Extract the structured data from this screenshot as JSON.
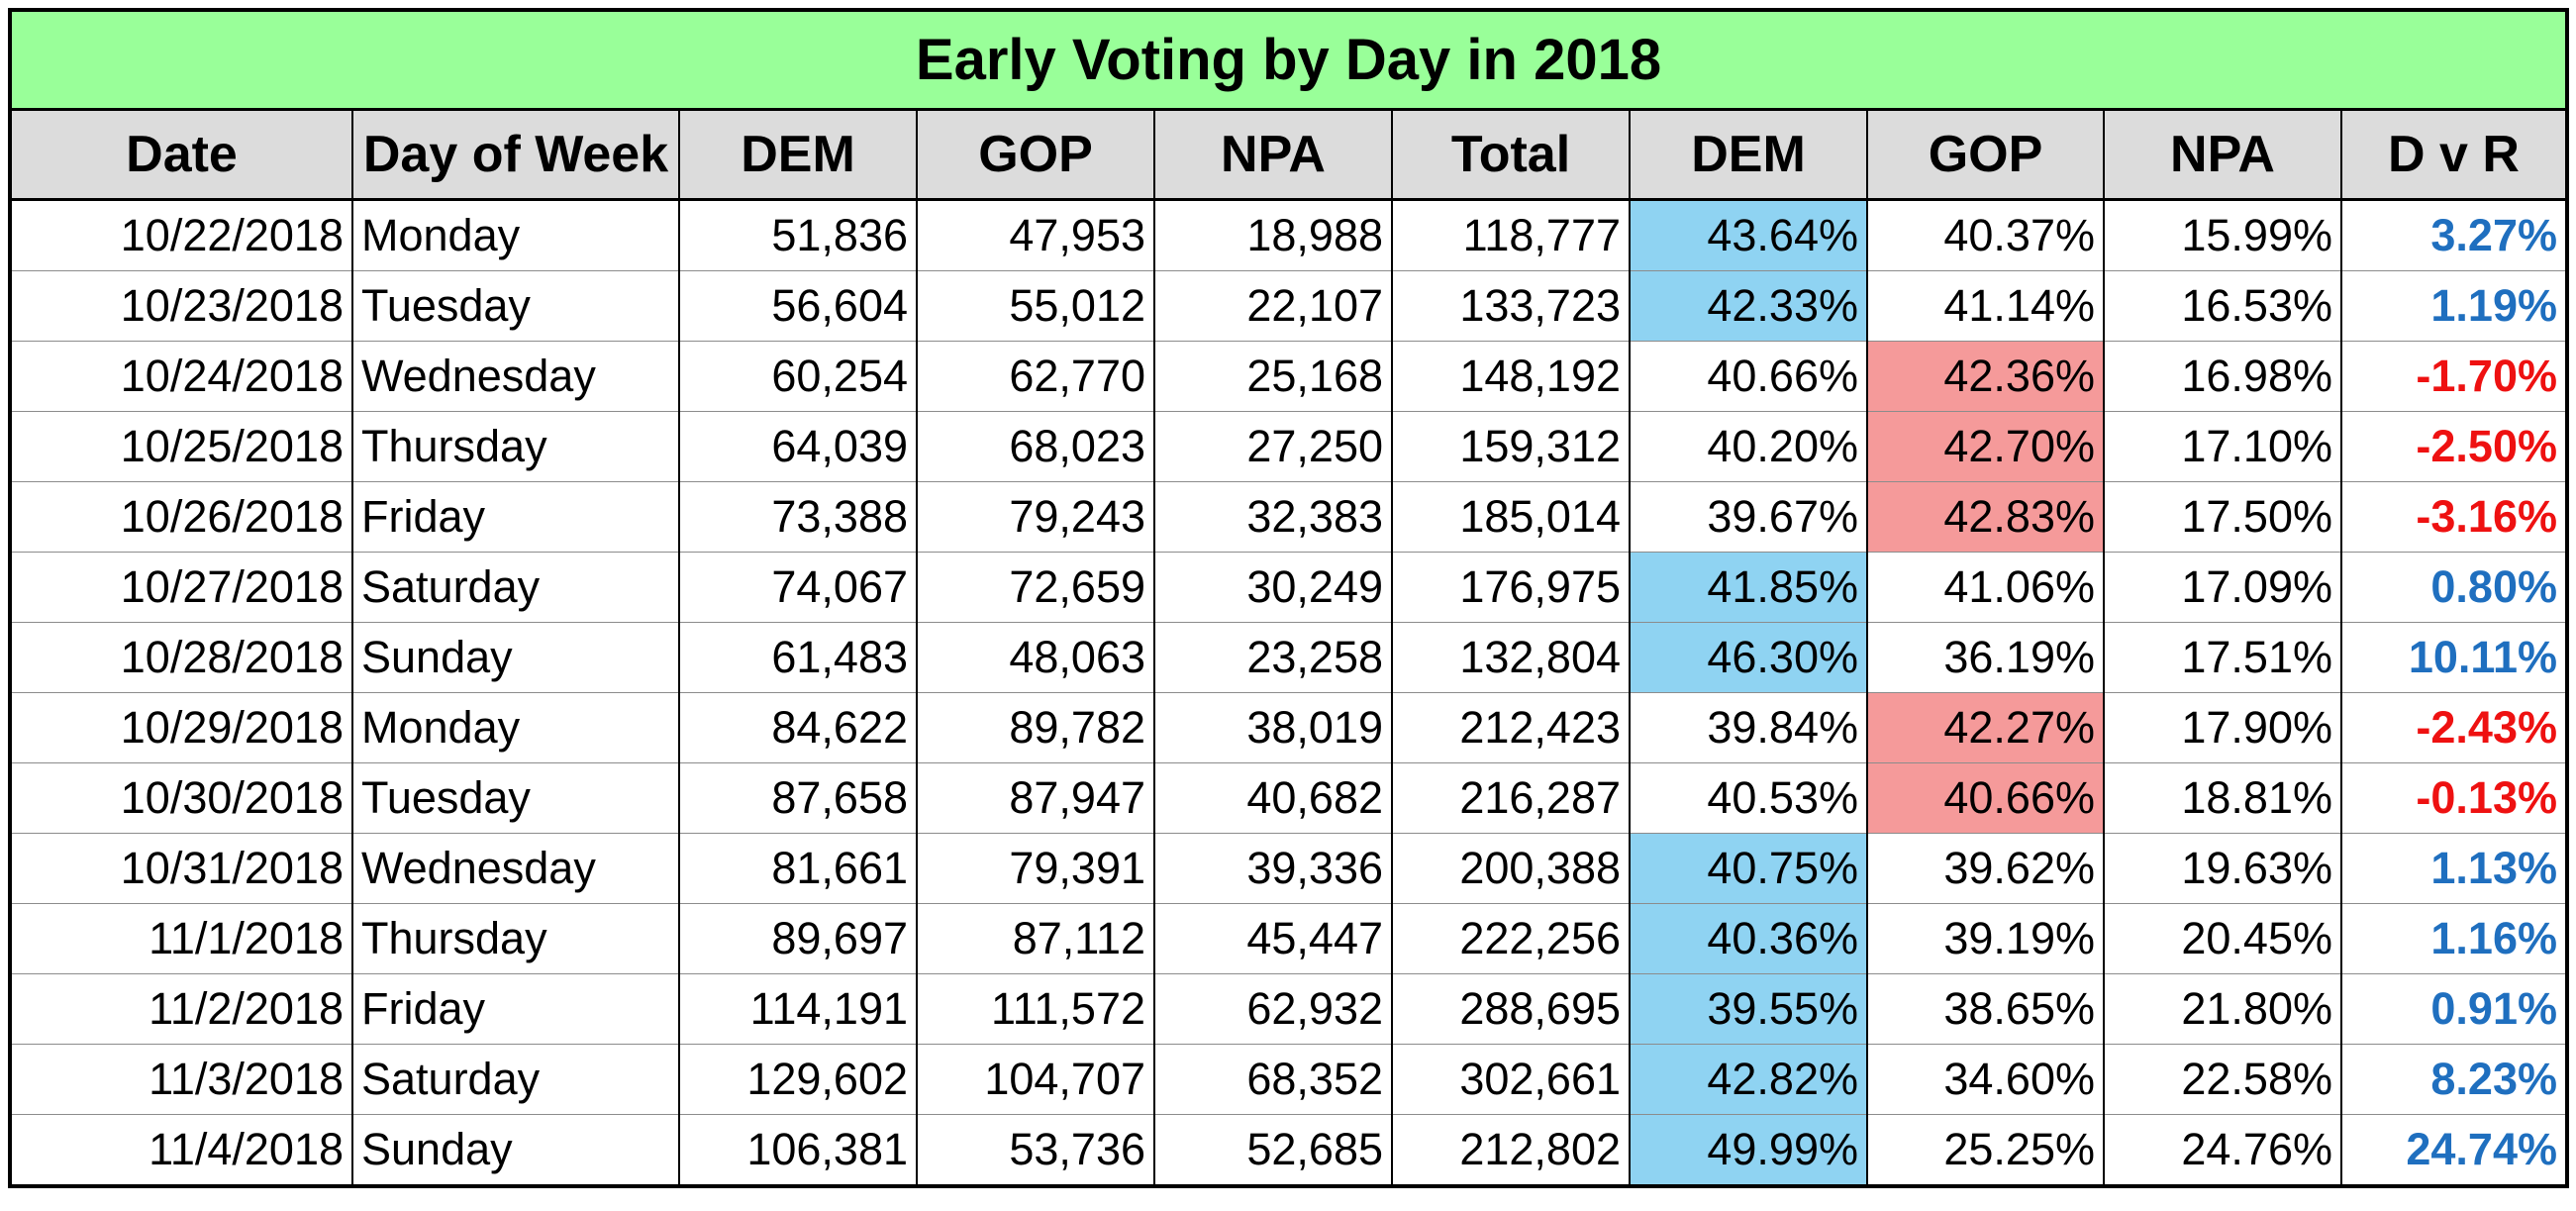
{
  "title": "Early Voting by Day in 2018",
  "colors": {
    "title_bg": "#99ff99",
    "header_bg": "#dcdcdc",
    "dem_lead_fill": "#8fd3f2",
    "gop_lead_fill": "#f59a9a",
    "positive_text": "#1f6fbf",
    "negative_text": "#ee1111"
  },
  "headers": [
    "Date",
    "Day of Week",
    "DEM",
    "GOP",
    "NPA",
    "Total",
    "DEM",
    "GOP",
    "NPA",
    "D v R"
  ],
  "rows": [
    {
      "date": "10/22/2018",
      "day": "Monday",
      "dem": "51,836",
      "gop": "47,953",
      "npa": "18,988",
      "total": "118,777",
      "dem_pct": "43.64%",
      "gop_pct": "40.37%",
      "npa_pct": "15.99%",
      "dvr": "3.27%",
      "leader": "dem"
    },
    {
      "date": "10/23/2018",
      "day": "Tuesday",
      "dem": "56,604",
      "gop": "55,012",
      "npa": "22,107",
      "total": "133,723",
      "dem_pct": "42.33%",
      "gop_pct": "41.14%",
      "npa_pct": "16.53%",
      "dvr": "1.19%",
      "leader": "dem"
    },
    {
      "date": "10/24/2018",
      "day": "Wednesday",
      "dem": "60,254",
      "gop": "62,770",
      "npa": "25,168",
      "total": "148,192",
      "dem_pct": "40.66%",
      "gop_pct": "42.36%",
      "npa_pct": "16.98%",
      "dvr": "-1.70%",
      "leader": "gop"
    },
    {
      "date": "10/25/2018",
      "day": "Thursday",
      "dem": "64,039",
      "gop": "68,023",
      "npa": "27,250",
      "total": "159,312",
      "dem_pct": "40.20%",
      "gop_pct": "42.70%",
      "npa_pct": "17.10%",
      "dvr": "-2.50%",
      "leader": "gop"
    },
    {
      "date": "10/26/2018",
      "day": "Friday",
      "dem": "73,388",
      "gop": "79,243",
      "npa": "32,383",
      "total": "185,014",
      "dem_pct": "39.67%",
      "gop_pct": "42.83%",
      "npa_pct": "17.50%",
      "dvr": "-3.16%",
      "leader": "gop"
    },
    {
      "date": "10/27/2018",
      "day": "Saturday",
      "dem": "74,067",
      "gop": "72,659",
      "npa": "30,249",
      "total": "176,975",
      "dem_pct": "41.85%",
      "gop_pct": "41.06%",
      "npa_pct": "17.09%",
      "dvr": "0.80%",
      "leader": "dem"
    },
    {
      "date": "10/28/2018",
      "day": "Sunday",
      "dem": "61,483",
      "gop": "48,063",
      "npa": "23,258",
      "total": "132,804",
      "dem_pct": "46.30%",
      "gop_pct": "36.19%",
      "npa_pct": "17.51%",
      "dvr": "10.11%",
      "leader": "dem"
    },
    {
      "date": "10/29/2018",
      "day": "Monday",
      "dem": "84,622",
      "gop": "89,782",
      "npa": "38,019",
      "total": "212,423",
      "dem_pct": "39.84%",
      "gop_pct": "42.27%",
      "npa_pct": "17.90%",
      "dvr": "-2.43%",
      "leader": "gop"
    },
    {
      "date": "10/30/2018",
      "day": "Tuesday",
      "dem": "87,658",
      "gop": "87,947",
      "npa": "40,682",
      "total": "216,287",
      "dem_pct": "40.53%",
      "gop_pct": "40.66%",
      "npa_pct": "18.81%",
      "dvr": "-0.13%",
      "leader": "gop"
    },
    {
      "date": "10/31/2018",
      "day": "Wednesday",
      "dem": "81,661",
      "gop": "79,391",
      "npa": "39,336",
      "total": "200,388",
      "dem_pct": "40.75%",
      "gop_pct": "39.62%",
      "npa_pct": "19.63%",
      "dvr": "1.13%",
      "leader": "dem"
    },
    {
      "date": "11/1/2018",
      "day": "Thursday",
      "dem": "89,697",
      "gop": "87,112",
      "npa": "45,447",
      "total": "222,256",
      "dem_pct": "40.36%",
      "gop_pct": "39.19%",
      "npa_pct": "20.45%",
      "dvr": "1.16%",
      "leader": "dem"
    },
    {
      "date": "11/2/2018",
      "day": "Friday",
      "dem": "114,191",
      "gop": "111,572",
      "npa": "62,932",
      "total": "288,695",
      "dem_pct": "39.55%",
      "gop_pct": "38.65%",
      "npa_pct": "21.80%",
      "dvr": "0.91%",
      "leader": "dem"
    },
    {
      "date": "11/3/2018",
      "day": "Saturday",
      "dem": "129,602",
      "gop": "104,707",
      "npa": "68,352",
      "total": "302,661",
      "dem_pct": "42.82%",
      "gop_pct": "34.60%",
      "npa_pct": "22.58%",
      "dvr": "8.23%",
      "leader": "dem"
    },
    {
      "date": "11/4/2018",
      "day": "Sunday",
      "dem": "106,381",
      "gop": "53,736",
      "npa": "52,685",
      "total": "212,802",
      "dem_pct": "49.99%",
      "gop_pct": "25.25%",
      "npa_pct": "24.76%",
      "dvr": "24.74%",
      "leader": "dem"
    }
  ]
}
